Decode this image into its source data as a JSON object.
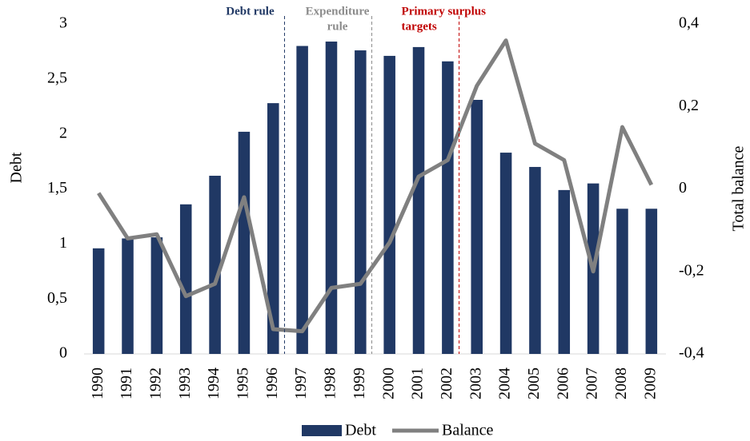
{
  "chart_data": {
    "type": "bar-line",
    "y_label": "Debt",
    "y2_label": "Total balance",
    "categories": [
      "1990",
      "1991",
      "1992",
      "1993",
      "1994",
      "1995",
      "1996",
      "1997",
      "1998",
      "1999",
      "2000",
      "2001",
      "2002",
      "2003",
      "2004",
      "2005",
      "2006",
      "2007",
      "2008",
      "2009"
    ],
    "series": [
      {
        "name": "Debt",
        "type": "bar",
        "color": "#203864",
        "values": [
          0.96,
          1.05,
          1.06,
          1.36,
          1.62,
          2.02,
          2.28,
          2.8,
          2.84,
          2.76,
          2.71,
          2.79,
          2.66,
          2.31,
          1.83,
          1.7,
          1.49,
          1.55,
          1.32,
          1.32
        ]
      },
      {
        "name": "Balance",
        "type": "line",
        "axis": "y2",
        "color": "#808080",
        "values": [
          -0.01,
          -0.12,
          -0.11,
          -0.26,
          -0.23,
          -0.02,
          -0.34,
          -0.345,
          -0.24,
          -0.23,
          -0.13,
          0.03,
          0.07,
          0.25,
          0.36,
          0.11,
          0.07,
          -0.2,
          0.15,
          0.01
        ]
      }
    ],
    "ylim": [
      0,
      3
    ],
    "yticks": [
      0,
      {
        "value": 0.5,
        "label": "0,5"
      },
      1,
      {
        "value": 1.5,
        "label": "1,5"
      },
      2,
      {
        "value": 2.5,
        "label": "2,5"
      },
      3
    ],
    "y2lim": [
      -0.4,
      0.4
    ],
    "y2ticks": [
      {
        "value": -0.4,
        "label": "-0,4"
      },
      {
        "value": -0.2,
        "label": "-0,2"
      },
      0,
      {
        "value": 0.2,
        "label": "0,2"
      },
      {
        "value": 0.4,
        "label": "0,4"
      }
    ],
    "annotations": [
      {
        "text": [
          "Debt  rule"
        ],
        "color": "#203864"
      },
      {
        "text": [
          "Expenditure",
          "rule"
        ],
        "color": "#8c8c8c"
      },
      {
        "text": [
          "Primary surplus",
          "targets"
        ],
        "color": "#c00000"
      }
    ],
    "legend": "bottom"
  }
}
